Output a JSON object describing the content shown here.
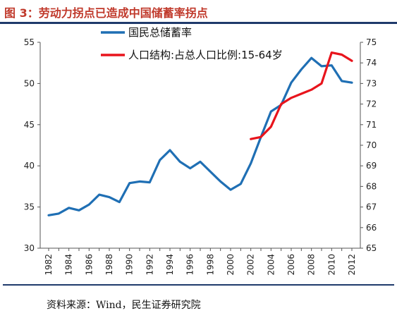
{
  "header": {
    "title": "图 3：劳动力拐点已造成中国储蓄率拐点"
  },
  "footer": {
    "source": "资料来源：Wind，民生证券研究院"
  },
  "colors": {
    "title": "#c0392b",
    "rule": "#1f3a6b",
    "savings": "#1f6fb4",
    "population": "#e8141c"
  },
  "chart_data": {
    "type": "line",
    "title": "",
    "xlabel": "",
    "ylabel_left": "",
    "ylabel_right": "",
    "xlim": [
      1982,
      2012
    ],
    "ylim_left": [
      30,
      55
    ],
    "ylim_right": [
      65,
      75
    ],
    "grid": false,
    "legend_position": "top-left",
    "x_tick_labels": [
      "1982",
      "1984",
      "1986",
      "1988",
      "1990",
      "1992",
      "1994",
      "1996",
      "1998",
      "2000",
      "2002",
      "2004",
      "2006",
      "2008",
      "2010",
      "2012"
    ],
    "y_left_tick_labels": [
      "30",
      "35",
      "40",
      "45",
      "50",
      "55"
    ],
    "y_right_tick_labels": [
      "65",
      "66",
      "67",
      "68",
      "69",
      "70",
      "71",
      "72",
      "73",
      "74",
      "75"
    ],
    "series": [
      {
        "name": "国民总储蓄率",
        "axis": "left",
        "color": "#1f6fb4",
        "points": [
          [
            1982,
            34.0
          ],
          [
            1983,
            34.2
          ],
          [
            1984,
            34.9
          ],
          [
            1985,
            34.6
          ],
          [
            1986,
            35.3
          ],
          [
            1987,
            36.5
          ],
          [
            1988,
            36.2
          ],
          [
            1989,
            35.6
          ],
          [
            1990,
            37.9
          ],
          [
            1991,
            38.1
          ],
          [
            1992,
            38.0
          ],
          [
            1993,
            40.7
          ],
          [
            1994,
            41.9
          ],
          [
            1995,
            40.5
          ],
          [
            1996,
            39.7
          ],
          [
            1997,
            40.5
          ],
          [
            1998,
            39.3
          ],
          [
            1999,
            38.1
          ],
          [
            2000,
            37.1
          ],
          [
            2001,
            37.8
          ],
          [
            2002,
            40.3
          ],
          [
            2003,
            43.5
          ],
          [
            2004,
            46.6
          ],
          [
            2005,
            47.4
          ],
          [
            2006,
            50.1
          ],
          [
            2007,
            51.7
          ],
          [
            2008,
            53.1
          ],
          [
            2009,
            52.1
          ],
          [
            2010,
            52.2
          ],
          [
            2011,
            50.3
          ],
          [
            2012,
            50.1
          ]
        ]
      },
      {
        "name": "人口结构:占总人口比例:15-64岁",
        "axis": "right",
        "color": "#e8141c",
        "points": [
          [
            2002,
            70.3
          ],
          [
            2003,
            70.4
          ],
          [
            2004,
            70.9
          ],
          [
            2005,
            72.0
          ],
          [
            2006,
            72.3
          ],
          [
            2007,
            72.5
          ],
          [
            2008,
            72.7
          ],
          [
            2009,
            73.0
          ],
          [
            2010,
            74.5
          ],
          [
            2011,
            74.4
          ],
          [
            2012,
            74.1
          ]
        ]
      }
    ]
  }
}
